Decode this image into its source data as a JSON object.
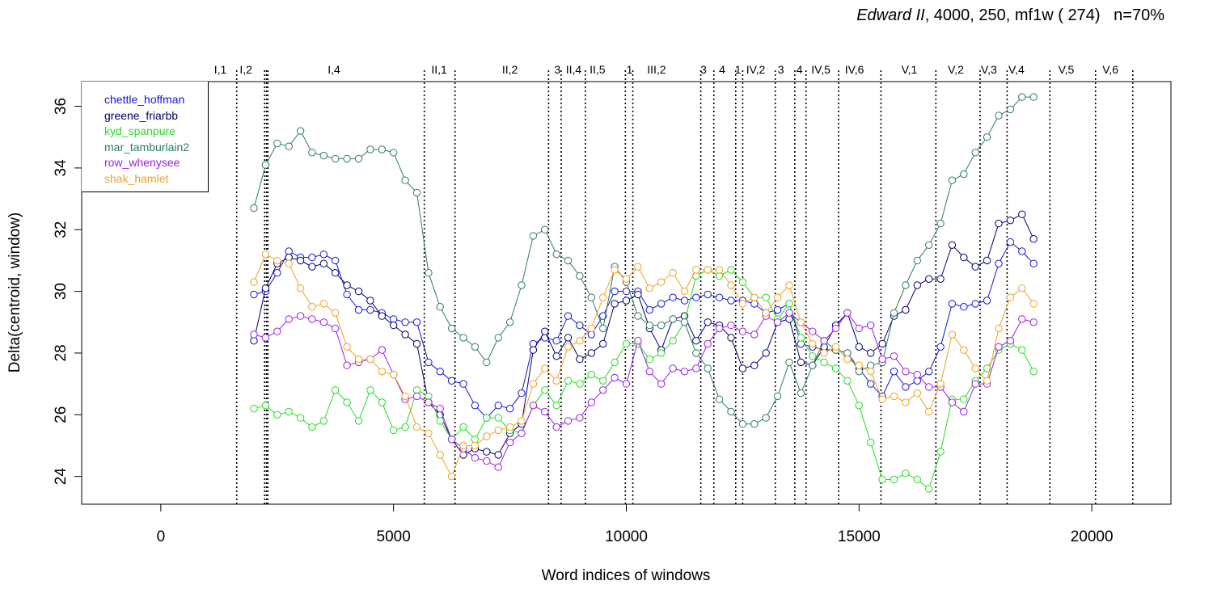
{
  "title": {
    "work": "Edward II",
    "params": ", 4000, 250, mf1w ( 274)",
    "n_label": "n=70%"
  },
  "chart_data": {
    "type": "line",
    "xlabel": "Word indices of windows",
    "ylabel": "Delta(centroid, window)",
    "xlim": [
      -1700,
      21700
    ],
    "ylim": [
      23.1,
      36.8
    ],
    "xticks": [
      0,
      5000,
      10000,
      15000,
      20000
    ],
    "yticks": [
      24,
      26,
      28,
      30,
      32,
      34,
      36
    ],
    "xtick_labels": [
      "0",
      "5000",
      "10000",
      "15000",
      "20000"
    ],
    "ytick_labels": [
      "24",
      "26",
      "28",
      "30",
      "32",
      "34",
      "36"
    ],
    "grid": false,
    "legend_position": "top-left",
    "scene_lines": [
      1630,
      2230,
      2270,
      2300,
      5660,
      6320,
      8330,
      8600,
      9120,
      9980,
      10140,
      11600,
      11880,
      12350,
      12500,
      13200,
      13620,
      13860,
      14560,
      15470,
      16650,
      17600,
      18180,
      19100,
      20080,
      20880
    ],
    "scenes": [
      {
        "label": "I,1",
        "x": 1280
      },
      {
        "label": "I,2",
        "x": 1830
      },
      {
        "label": "I,4",
        "x": 3720
      },
      {
        "label": "II,1",
        "x": 5980
      },
      {
        "label": "II,2",
        "x": 7500
      },
      {
        "label": "3",
        "x": 8520
      },
      {
        "label": "II,4",
        "x": 8870
      },
      {
        "label": "II,5",
        "x": 9380
      },
      {
        "label": "1",
        "x": 10070
      },
      {
        "label": "III,2",
        "x": 10650
      },
      {
        "label": "3",
        "x": 11660
      },
      {
        "label": "4",
        "x": 12060
      },
      {
        "label": "1",
        "x": 12400
      },
      {
        "label": "IV,2",
        "x": 12780
      },
      {
        "label": "3",
        "x": 13320
      },
      {
        "label": "4",
        "x": 13720
      },
      {
        "label": "IV,5",
        "x": 14180
      },
      {
        "label": "IV,6",
        "x": 14900
      },
      {
        "label": "V,1",
        "x": 16080
      },
      {
        "label": "V,2",
        "x": 17080
      },
      {
        "label": "V,3",
        "x": 17790
      },
      {
        "label": "V,4",
        "x": 18380
      },
      {
        "label": "V,5",
        "x": 19450
      },
      {
        "label": "V,6",
        "x": 20400
      }
    ],
    "x": [
      2000,
      2250,
      2500,
      2750,
      3000,
      3250,
      3500,
      3750,
      4000,
      4250,
      4500,
      4750,
      5000,
      5250,
      5500,
      5750,
      6000,
      6250,
      6500,
      6750,
      7000,
      7250,
      7500,
      7750,
      8000,
      8250,
      8500,
      8750,
      9000,
      9250,
      9500,
      9750,
      10000,
      10250,
      10500,
      10750,
      11000,
      11250,
      11500,
      11750,
      12000,
      12250,
      12500,
      12750,
      13000,
      13250,
      13500,
      13750,
      14000,
      14250,
      14500,
      14750,
      15000,
      15250,
      15500,
      15750,
      16000,
      16250,
      16500,
      16750,
      17000,
      17250,
      17500,
      17750,
      18000,
      18250,
      18500,
      18750
    ],
    "series": [
      {
        "name": "chettle_hoffman",
        "color": "#1414d8",
        "values": [
          29.9,
          30.0,
          30.6,
          31.3,
          31.1,
          31.1,
          31.2,
          31.0,
          29.9,
          29.4,
          29.4,
          29.3,
          29.1,
          29.0,
          29.0,
          27.7,
          27.4,
          27.1,
          27.0,
          26.3,
          25.9,
          26.3,
          26.2,
          26.7,
          28.3,
          28.5,
          28.4,
          29.2,
          28.9,
          28.6,
          29.2,
          30.0,
          30.0,
          30.0,
          29.4,
          29.6,
          29.8,
          29.7,
          29.8,
          29.9,
          29.8,
          29.7,
          29.7,
          29.6,
          29.3,
          29.4,
          29.6,
          28.3,
          28.2,
          28.1,
          28.1,
          28.0,
          27.5,
          27.0,
          26.6,
          27.4,
          26.9,
          27.1,
          27.4,
          28.2,
          29.6,
          29.5,
          29.6,
          29.7,
          30.9,
          31.6,
          31.3,
          30.9
        ]
      },
      {
        "name": "greene_friarbb",
        "color": "#00006e",
        "values": [
          28.4,
          30.1,
          30.9,
          31.1,
          31.0,
          30.8,
          30.9,
          30.6,
          30.2,
          30.0,
          29.7,
          29.2,
          28.9,
          28.6,
          28.3,
          26.4,
          26.0,
          25.2,
          24.7,
          24.9,
          24.8,
          24.7,
          25.4,
          25.7,
          28.1,
          28.7,
          27.9,
          28.5,
          27.8,
          28.0,
          28.3,
          29.6,
          29.7,
          29.9,
          28.8,
          28.1,
          29.1,
          29.2,
          28.4,
          29.0,
          28.9,
          28.5,
          27.5,
          27.6,
          28.0,
          29.0,
          29.1,
          27.7,
          27.6,
          28.2,
          28.9,
          29.3,
          28.2,
          28.0,
          28.3,
          29.2,
          29.4,
          30.2,
          30.4,
          30.4,
          31.5,
          31.1,
          30.8,
          31.0,
          32.2,
          32.3,
          32.5,
          31.7
        ]
      },
      {
        "name": "kyd_spanpure",
        "color": "#22dd22",
        "values": [
          26.2,
          26.3,
          26.0,
          26.1,
          25.9,
          25.6,
          25.8,
          26.8,
          26.4,
          25.8,
          26.8,
          26.4,
          25.5,
          25.6,
          26.8,
          26.6,
          25.8,
          25.2,
          25.6,
          25.2,
          25.9,
          25.9,
          25.5,
          25.4,
          26.3,
          26.8,
          26.3,
          27.1,
          27.0,
          27.3,
          27.1,
          27.7,
          28.3,
          28.3,
          27.8,
          28.0,
          28.4,
          29.0,
          30.5,
          30.7,
          30.5,
          30.7,
          30.3,
          29.8,
          29.8,
          29.1,
          29.6,
          28.5,
          27.9,
          27.7,
          27.5,
          27.1,
          26.3,
          25.1,
          23.9,
          23.9,
          24.1,
          23.9,
          23.6,
          24.8,
          26.5,
          26.5,
          27.1,
          27.5,
          28.1,
          28.3,
          28.1,
          27.4
        ]
      },
      {
        "name": "mar_tamburlain2",
        "color": "#2e7d5e",
        "values": [
          32.7,
          34.1,
          34.8,
          34.7,
          35.2,
          34.5,
          34.4,
          34.3,
          34.3,
          34.3,
          34.6,
          34.6,
          34.5,
          33.6,
          33.2,
          30.6,
          29.5,
          28.8,
          28.5,
          28.2,
          27.7,
          28.5,
          29.0,
          30.2,
          31.8,
          32.0,
          31.2,
          31.0,
          30.5,
          29.8,
          28.8,
          30.8,
          30.3,
          29.2,
          28.9,
          28.9,
          29.1,
          29.0,
          28.0,
          27.5,
          26.5,
          26.1,
          25.7,
          25.7,
          25.9,
          26.6,
          27.7,
          26.7,
          27.6,
          28.4,
          28.1,
          28.0,
          27.4,
          27.6,
          27.7,
          29.3,
          30.2,
          31.0,
          31.5,
          32.2,
          33.6,
          33.8,
          34.5,
          35.0,
          35.7,
          35.9,
          36.3,
          36.3
        ]
      },
      {
        "name": "row_whenysee",
        "color": "#9a1ee8",
        "values": [
          28.6,
          28.5,
          28.7,
          29.1,
          29.2,
          29.1,
          29.0,
          28.8,
          27.6,
          27.7,
          27.8,
          28.1,
          27.3,
          26.5,
          26.6,
          26.4,
          26.2,
          25.2,
          24.9,
          24.6,
          24.5,
          24.3,
          25.1,
          25.4,
          26.3,
          26.1,
          25.6,
          25.8,
          25.9,
          26.4,
          26.8,
          27.2,
          27.0,
          28.4,
          27.4,
          27.0,
          27.5,
          27.4,
          27.5,
          28.3,
          28.8,
          28.9,
          28.7,
          28.6,
          29.2,
          29.0,
          29.3,
          29.0,
          28.7,
          28.4,
          28.8,
          29.3,
          28.8,
          28.9,
          27.8,
          27.9,
          27.4,
          27.3,
          26.9,
          26.9,
          26.4,
          26.1,
          27.0,
          27.0,
          28.2,
          28.4,
          29.1,
          29.0
        ]
      },
      {
        "name": "shak_hamlet",
        "color": "#f0a020",
        "values": [
          30.3,
          31.2,
          31.0,
          30.9,
          30.1,
          29.5,
          29.6,
          29.3,
          28.2,
          27.8,
          27.8,
          27.4,
          27.3,
          26.6,
          25.6,
          25.4,
          24.7,
          24.0,
          25.0,
          25.0,
          25.3,
          25.5,
          25.6,
          25.8,
          27.0,
          27.5,
          27.1,
          28.2,
          28.4,
          28.8,
          29.8,
          30.7,
          30.4,
          30.8,
          30.1,
          30.3,
          30.6,
          30.0,
          30.7,
          30.7,
          30.7,
          30.2,
          29.6,
          29.8,
          29.3,
          29.8,
          30.2,
          29.0,
          28.3,
          28.0,
          28.2,
          27.8,
          27.6,
          27.4,
          26.5,
          26.6,
          26.4,
          26.7,
          26.1,
          27.0,
          28.6,
          28.1,
          27.5,
          27.1,
          28.8,
          29.8,
          30.1,
          29.6
        ]
      }
    ]
  }
}
